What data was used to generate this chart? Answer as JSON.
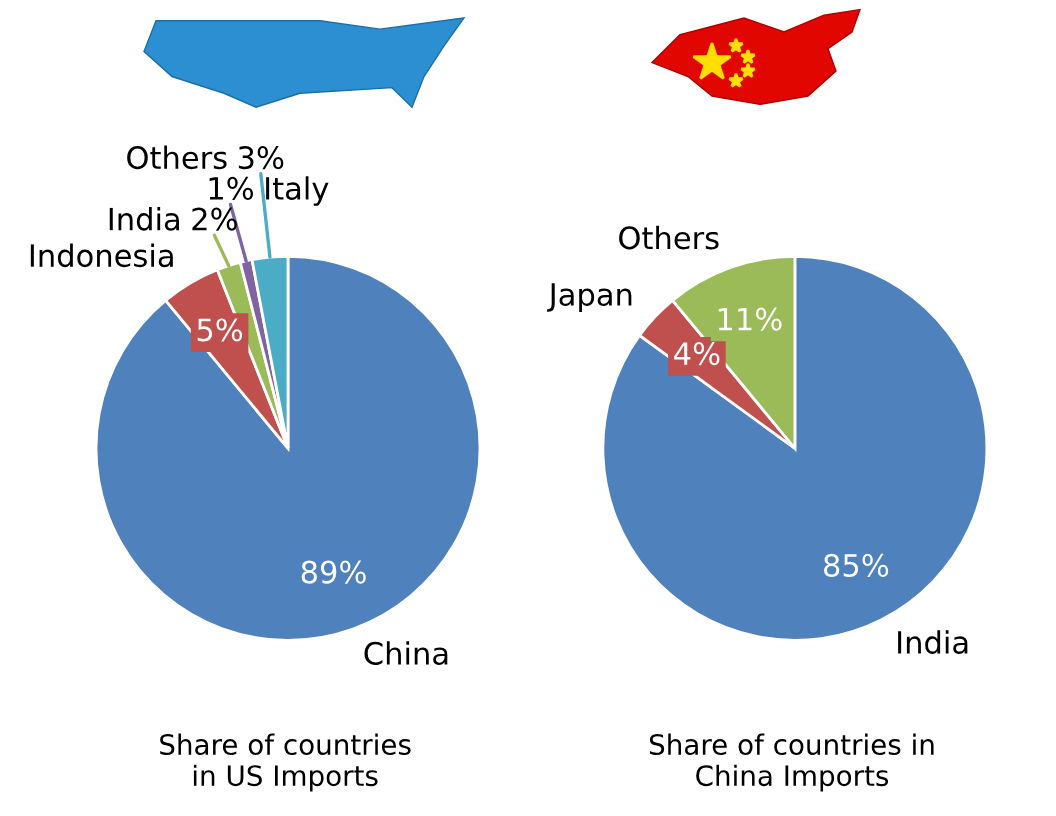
{
  "chart_data": [
    {
      "type": "pie",
      "title": "Share of countries\nin US Imports",
      "categories": [
        "China",
        "Indonesia",
        "India",
        "Italy",
        "Others"
      ],
      "values": [
        89,
        5,
        2,
        1,
        3
      ],
      "colors": [
        "#4f81bd",
        "#c0504d",
        "#9bbb59",
        "#8064a2",
        "#4bacc6"
      ],
      "value_labels": [
        "89%",
        "5%",
        "2%",
        "1%",
        "3%"
      ]
    },
    {
      "type": "pie",
      "title": "Share of countries in\nChina Imports",
      "categories": [
        "India",
        "Japan",
        "Others"
      ],
      "values": [
        85,
        4,
        11
      ],
      "colors": [
        "#4f81bd",
        "#c0504d",
        "#9bbb59"
      ],
      "value_labels": [
        "85%",
        "4%",
        "11%"
      ]
    }
  ]
}
